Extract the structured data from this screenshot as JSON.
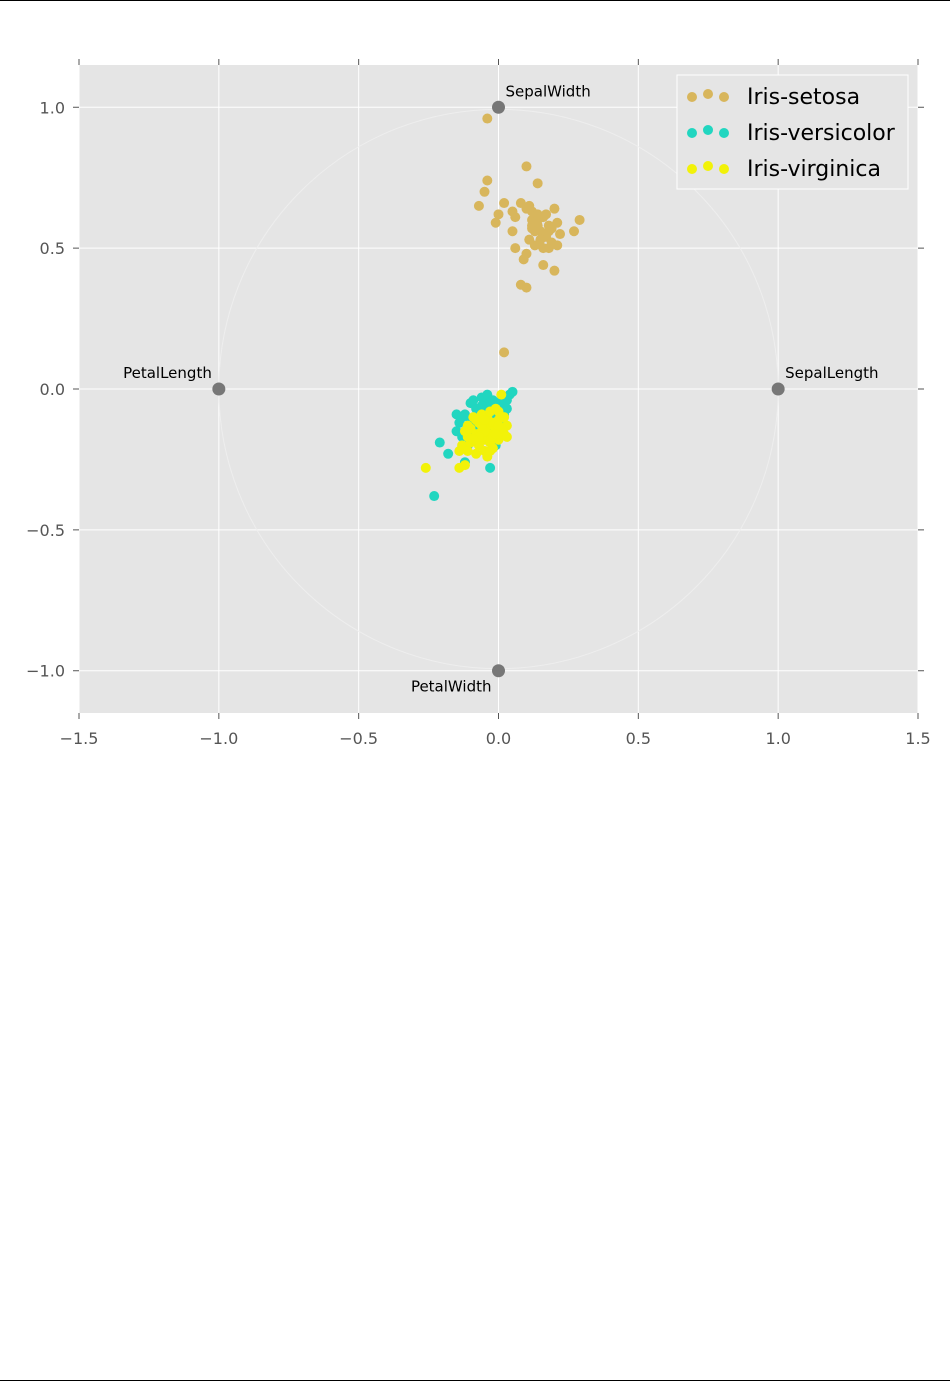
{
  "chart_data": {
    "type": "scatter",
    "title": "",
    "xlabel": "",
    "ylabel": "",
    "xlim": [
      -1.5,
      1.5
    ],
    "ylim": [
      -1.15,
      1.15
    ],
    "x_ticks": [
      "−1.5",
      "−1.0",
      "−0.5",
      "0.0",
      "0.5",
      "1.0",
      "1.5"
    ],
    "y_ticks": [
      "−1.0",
      "−0.5",
      "0.0",
      "0.5",
      "1.0"
    ],
    "grid": true,
    "legend_position": "top-right",
    "background_color": "#e5e5e5",
    "anchors": [
      {
        "label": "SepalLength",
        "x": 1.0,
        "y": 0.0
      },
      {
        "label": "SepalWidth",
        "x": 0.0,
        "y": 1.0
      },
      {
        "label": "PetalLength",
        "x": -1.0,
        "y": 0.0
      },
      {
        "label": "PetalWidth",
        "x": 0.0,
        "y": -1.0
      }
    ],
    "anchor_color": "#777777",
    "series": [
      {
        "name": "Iris-setosa",
        "color": "#d8b65c",
        "points": [
          [
            -0.04,
            0.96
          ],
          [
            -0.04,
            0.74
          ],
          [
            -0.05,
            0.7
          ],
          [
            -0.07,
            0.65
          ],
          [
            0.02,
            0.66
          ],
          [
            0.0,
            0.62
          ],
          [
            -0.01,
            0.59
          ],
          [
            0.05,
            0.63
          ],
          [
            0.1,
            0.79
          ],
          [
            0.14,
            0.73
          ],
          [
            0.08,
            0.66
          ],
          [
            0.11,
            0.65
          ],
          [
            0.12,
            0.63
          ],
          [
            0.12,
            0.6
          ],
          [
            0.14,
            0.58
          ],
          [
            0.16,
            0.61
          ],
          [
            0.18,
            0.58
          ],
          [
            0.2,
            0.64
          ],
          [
            0.21,
            0.59
          ],
          [
            0.15,
            0.56
          ],
          [
            0.17,
            0.54
          ],
          [
            0.19,
            0.52
          ],
          [
            0.21,
            0.51
          ],
          [
            0.13,
            0.51
          ],
          [
            0.11,
            0.53
          ],
          [
            0.16,
            0.5
          ],
          [
            0.05,
            0.56
          ],
          [
            0.1,
            0.48
          ],
          [
            0.09,
            0.46
          ],
          [
            0.06,
            0.5
          ],
          [
            0.2,
            0.42
          ],
          [
            0.16,
            0.44
          ],
          [
            0.18,
            0.56
          ],
          [
            0.27,
            0.56
          ],
          [
            0.29,
            0.6
          ],
          [
            0.08,
            0.37
          ],
          [
            0.1,
            0.36
          ],
          [
            0.22,
            0.55
          ],
          [
            0.14,
            0.6
          ],
          [
            0.02,
            0.13
          ],
          [
            0.12,
            0.57
          ],
          [
            0.17,
            0.62
          ],
          [
            0.13,
            0.56
          ],
          [
            0.19,
            0.57
          ],
          [
            0.06,
            0.61
          ],
          [
            0.15,
            0.53
          ],
          [
            0.1,
            0.64
          ],
          [
            0.18,
            0.5
          ],
          [
            0.12,
            0.58
          ],
          [
            0.14,
            0.62
          ]
        ]
      },
      {
        "name": "Iris-versicolor",
        "color": "#21d6c0",
        "points": [
          [
            -0.23,
            -0.38
          ],
          [
            -0.21,
            -0.19
          ],
          [
            -0.18,
            -0.23
          ],
          [
            -0.15,
            -0.09
          ],
          [
            -0.14,
            -0.12
          ],
          [
            -0.12,
            -0.09
          ],
          [
            -0.11,
            -0.16
          ],
          [
            -0.13,
            -0.17
          ],
          [
            -0.1,
            -0.05
          ],
          [
            -0.09,
            -0.04
          ],
          [
            -0.08,
            -0.07
          ],
          [
            -0.08,
            -0.1
          ],
          [
            -0.06,
            -0.03
          ],
          [
            -0.05,
            -0.05
          ],
          [
            -0.04,
            -0.02
          ],
          [
            -0.03,
            -0.06
          ],
          [
            -0.02,
            -0.04
          ],
          [
            -0.01,
            -0.08
          ],
          [
            0.0,
            -0.06
          ],
          [
            0.01,
            -0.05
          ],
          [
            0.02,
            -0.03
          ],
          [
            0.03,
            -0.04
          ],
          [
            0.04,
            -0.02
          ],
          [
            0.05,
            -0.01
          ],
          [
            -0.03,
            -0.28
          ],
          [
            -0.12,
            -0.26
          ],
          [
            -0.07,
            -0.18
          ],
          [
            -0.05,
            -0.14
          ],
          [
            -0.04,
            -0.11
          ],
          [
            -0.02,
            -0.13
          ],
          [
            0.0,
            -0.1
          ],
          [
            0.01,
            -0.12
          ],
          [
            -0.09,
            -0.13
          ],
          [
            -0.06,
            -0.09
          ],
          [
            -0.15,
            -0.15
          ],
          [
            -0.1,
            -0.11
          ],
          [
            -0.03,
            -0.16
          ],
          [
            0.02,
            -0.09
          ],
          [
            -0.07,
            -0.12
          ],
          [
            -0.01,
            -0.2
          ],
          [
            -0.11,
            -0.2
          ],
          [
            -0.04,
            -0.08
          ],
          [
            0.03,
            -0.07
          ],
          [
            -0.08,
            -0.15
          ],
          [
            -0.06,
            -0.06
          ],
          [
            0.0,
            -0.15
          ],
          [
            -0.02,
            -0.11
          ],
          [
            -0.13,
            -0.1
          ],
          [
            -0.05,
            -0.17
          ],
          [
            0.01,
            -0.04
          ]
        ]
      },
      {
        "name": "Iris-virginica",
        "color": "#f2f209",
        "points": [
          [
            -0.26,
            -0.28
          ],
          [
            -0.14,
            -0.28
          ],
          [
            -0.12,
            -0.27
          ],
          [
            -0.14,
            -0.22
          ],
          [
            -0.13,
            -0.2
          ],
          [
            -0.11,
            -0.17
          ],
          [
            -0.1,
            -0.14
          ],
          [
            -0.08,
            -0.16
          ],
          [
            -0.07,
            -0.12
          ],
          [
            -0.06,
            -0.15
          ],
          [
            -0.05,
            -0.18
          ],
          [
            -0.04,
            -0.13
          ],
          [
            -0.03,
            -0.16
          ],
          [
            -0.02,
            -0.12
          ],
          [
            -0.01,
            -0.14
          ],
          [
            0.0,
            -0.11
          ],
          [
            0.02,
            -0.16
          ],
          [
            0.03,
            -0.13
          ],
          [
            0.0,
            -0.08
          ],
          [
            -0.01,
            -0.07
          ],
          [
            0.01,
            -0.02
          ],
          [
            -0.07,
            -0.2
          ],
          [
            -0.05,
            -0.22
          ],
          [
            -0.03,
            -0.19
          ],
          [
            -0.09,
            -0.1
          ],
          [
            -0.11,
            -0.13
          ],
          [
            -0.04,
            -0.1
          ],
          [
            -0.02,
            -0.21
          ],
          [
            0.0,
            -0.18
          ],
          [
            -0.06,
            -0.09
          ],
          [
            -0.08,
            -0.23
          ],
          [
            -0.12,
            -0.15
          ],
          [
            -0.1,
            -0.19
          ],
          [
            -0.03,
            -0.08
          ],
          [
            0.02,
            -0.1
          ],
          [
            -0.05,
            -0.15
          ],
          [
            -0.07,
            -0.17
          ],
          [
            -0.01,
            -0.12
          ],
          [
            0.01,
            -0.14
          ],
          [
            -0.04,
            -0.24
          ],
          [
            -0.09,
            -0.18
          ],
          [
            -0.06,
            -0.13
          ],
          [
            -0.02,
            -0.17
          ],
          [
            0.0,
            -0.13
          ],
          [
            -0.08,
            -0.11
          ],
          [
            -0.03,
            -0.22
          ],
          [
            0.03,
            -0.17
          ],
          [
            -0.05,
            -0.11
          ],
          [
            -0.11,
            -0.22
          ],
          [
            -0.01,
            -0.16
          ]
        ]
      }
    ]
  }
}
